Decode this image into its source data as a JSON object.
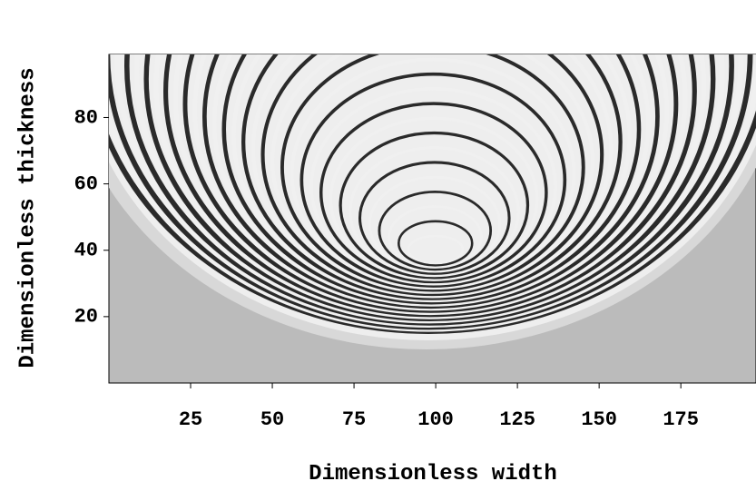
{
  "chart_data": {
    "type": "image",
    "x_label": "Dimensionless width",
    "y_label": "Dimensionless thickness",
    "xlim": [
      0,
      198
    ],
    "ylim": [
      0,
      99
    ],
    "xticks": [
      25,
      50,
      75,
      100,
      125,
      150,
      175
    ],
    "yticks": [
      20,
      40,
      60,
      80
    ]
  }
}
